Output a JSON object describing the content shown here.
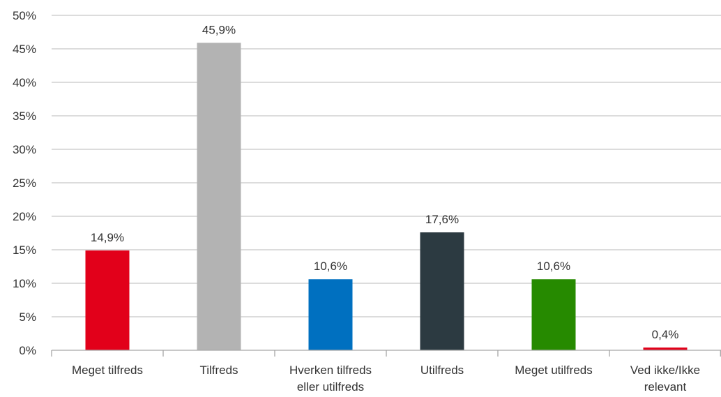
{
  "chart_data": {
    "type": "bar",
    "categories": [
      [
        "Meget tilfreds"
      ],
      [
        "Tilfreds"
      ],
      [
        "Hverken tilfreds",
        "eller utilfreds"
      ],
      [
        "Utilfreds"
      ],
      [
        "Meget utilfreds"
      ],
      [
        "Ved ikke/Ikke",
        "relevant"
      ]
    ],
    "values": [
      14.9,
      45.9,
      10.6,
      17.6,
      10.6,
      0.4
    ],
    "data_labels": [
      "14,9%",
      "45,9%",
      "10,6%",
      "17,6%",
      "10,6%",
      "0,4%"
    ],
    "colors": [
      "#e2001a",
      "#b3b3b3",
      "#0070c0",
      "#2c3a41",
      "#268a00",
      "#e2001a"
    ],
    "ylim": [
      0,
      50
    ],
    "yticks": [
      "0%",
      "5%",
      "10%",
      "15%",
      "20%",
      "25%",
      "30%",
      "35%",
      "40%",
      "45%",
      "50%"
    ],
    "grid": true,
    "gridline_color": "#c8c8c8",
    "axis_color": "#a6a6a6",
    "legend": "none"
  }
}
